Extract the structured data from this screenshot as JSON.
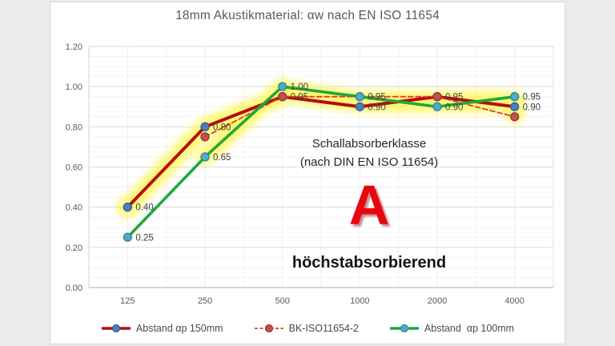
{
  "page": {
    "background": "#EBEBEB",
    "panel_background": "#FFFFFF"
  },
  "chart": {
    "title": "18mm Akustikmaterial: αw nach EN ISO 11654",
    "annotation": {
      "line1": "Schallabsorberklasse",
      "line2": "(nach DIN EN ISO 11654)",
      "class_letter": "A",
      "class_description": "höchstabsorbierend",
      "letter_color": "#E8050E",
      "highlight_color": "#FFF200"
    },
    "axis_color": "#595959",
    "grid_major_color": "#DBDBDB",
    "grid_minor_color": "#F3F3F3",
    "grid_vertical_color": "#EFEFEF",
    "label_color": "#3F3F3F"
  },
  "chart_data": {
    "type": "line",
    "categories": [
      "125",
      "250",
      "500",
      "1000",
      "2000",
      "4000"
    ],
    "xlabel": "",
    "ylabel": "",
    "ylim": [
      0.0,
      1.2
    ],
    "ytick_step": 0.2,
    "yminor_step": 0.05,
    "ytick_labels": [
      "0.00",
      "0.20",
      "0.40",
      "0.60",
      "0.80",
      "1.00",
      "1.20"
    ],
    "grid": true,
    "legend_position": "bottom",
    "series": [
      {
        "name": "Abstand αp 150mm",
        "values": [
          0.4,
          0.8,
          0.95,
          0.9,
          0.95,
          0.9
        ],
        "line_color": "#B40E10",
        "line_style": "solid",
        "line_width": 4,
        "marker_color": "#4A7EBE",
        "marker_edge": "#2F5C96"
      },
      {
        "name": "BK-ISO11654-2",
        "values": [
          null,
          0.75,
          0.95,
          0.95,
          0.95,
          0.85
        ],
        "line_color": "#E8392C",
        "line_style": "dashed",
        "line_width": 1.8,
        "marker_color": "#C0504D",
        "marker_edge": "#943634"
      },
      {
        "name": "Abstand  αp 100mm",
        "values": [
          0.25,
          0.65,
          1.0,
          0.95,
          0.9,
          0.95
        ],
        "line_color": "#1FA83C",
        "line_style": "solid",
        "line_width": 3.6,
        "marker_color": "#4BACC6",
        "marker_edge": "#31859B"
      }
    ],
    "data_labels": [
      {
        "series": 0,
        "index": 0,
        "text": "0.40"
      },
      {
        "series": 2,
        "index": 0,
        "text": "0.25"
      },
      {
        "series": 0,
        "index": 1,
        "text": "0.80"
      },
      {
        "series": 2,
        "index": 1,
        "text": "0.65"
      },
      {
        "series": 2,
        "index": 2,
        "text": "1.00"
      },
      {
        "series": 0,
        "index": 2,
        "text": "0.95"
      },
      {
        "series": 2,
        "index": 3,
        "text": "0.95"
      },
      {
        "series": 0,
        "index": 3,
        "text": "0.90"
      },
      {
        "series": 1,
        "index": 4,
        "text": "0.95"
      },
      {
        "series": 2,
        "index": 4,
        "text": "0.90"
      },
      {
        "series": 2,
        "index": 5,
        "text": "0.95"
      },
      {
        "series": 0,
        "index": 5,
        "text": "0.90"
      }
    ]
  }
}
